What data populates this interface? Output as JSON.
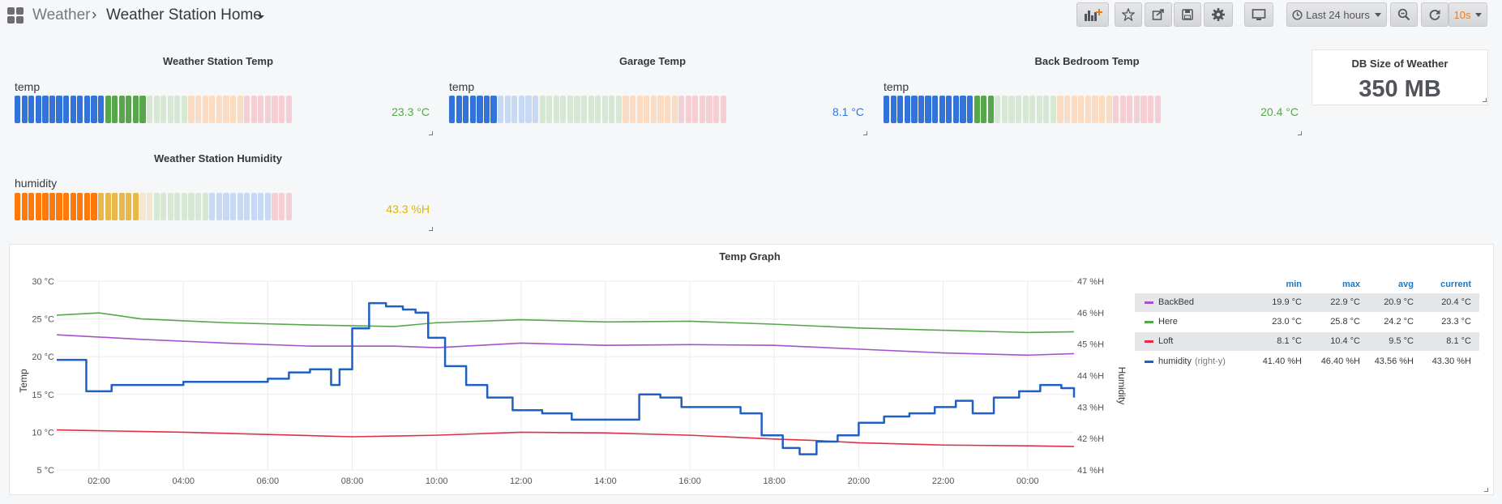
{
  "header": {
    "folder": "Weather",
    "separator": "›",
    "dashboard_title": "Weather Station Home",
    "time_range": "Last 24 hours",
    "refresh_interval": "10s"
  },
  "gauges": [
    {
      "title": "Weather Station Temp",
      "label": "temp",
      "value": "23.3 °C",
      "value_color": "#56a64b",
      "filled_cells": 19,
      "total_cells": 40
    },
    {
      "title": "Garage Temp",
      "label": "temp",
      "value": "8.1 °C",
      "value_color": "#3274d9",
      "filled_cells": 7,
      "total_cells": 40
    },
    {
      "title": "Back Bedroom Temp",
      "label": "temp",
      "value": "20.4 °C",
      "value_color": "#56a64b",
      "filled_cells": 16,
      "total_cells": 40
    },
    {
      "title": "Weather Station Humidity",
      "label": "humidity",
      "value": "43.3 %H",
      "value_color": "#e0b400",
      "filled_cells": 18,
      "total_cells": 40
    }
  ],
  "stat": {
    "title": "DB Size of Weather",
    "value": "350 MB"
  },
  "chart_data": {
    "type": "line",
    "title": "Temp Graph",
    "ylabel": "Temp",
    "ylabel_right": "Humidity",
    "ylim": [
      5,
      30
    ],
    "ylim_right": [
      41,
      47
    ],
    "y_ticks": [
      "5 °C",
      "10 °C",
      "15 °C",
      "20 °C",
      "25 °C",
      "30 °C"
    ],
    "y_ticks_right": [
      "41 %H",
      "42 %H",
      "43 %H",
      "44 %H",
      "45 %H",
      "46 %H",
      "47 %H"
    ],
    "x_ticks": [
      "02:00",
      "04:00",
      "06:00",
      "08:00",
      "10:00",
      "12:00",
      "14:00",
      "16:00",
      "18:00",
      "20:00",
      "22:00",
      "00:00"
    ],
    "x_tick_hours": [
      2,
      4,
      6,
      8,
      10,
      12,
      14,
      16,
      18,
      20,
      22,
      24
    ],
    "xlim_hours": [
      1,
      25.1
    ],
    "grid": true,
    "legend_placement": "right",
    "legend_columns": [
      "min",
      "max",
      "avg",
      "current"
    ],
    "series": [
      {
        "name": "BackBed",
        "color": "#a352cc",
        "axis": "left",
        "x": [
          1,
          3,
          5,
          7,
          9,
          10,
          12,
          14,
          16,
          18,
          20,
          22,
          24,
          25.1
        ],
        "values": [
          22.9,
          22.3,
          21.8,
          21.4,
          21.4,
          21.2,
          21.8,
          21.5,
          21.6,
          21.5,
          21.0,
          20.5,
          20.2,
          20.4
        ],
        "min": "19.9 °C",
        "max": "22.9 °C",
        "avg": "20.9 °C",
        "current": "20.4 °C"
      },
      {
        "name": "Here",
        "color": "#56a64b",
        "axis": "left",
        "x": [
          1,
          2,
          3,
          5,
          7,
          9,
          10,
          12,
          14,
          16,
          18,
          20,
          22,
          24,
          25.1
        ],
        "values": [
          25.5,
          25.8,
          25.0,
          24.5,
          24.2,
          24.0,
          24.5,
          24.9,
          24.6,
          24.7,
          24.3,
          23.8,
          23.5,
          23.2,
          23.3
        ],
        "min": "23.0 °C",
        "max": "25.8 °C",
        "avg": "24.2 °C",
        "current": "23.3 °C"
      },
      {
        "name": "Loft",
        "color": "#e02f44",
        "axis": "left",
        "x": [
          1,
          2,
          4,
          6,
          8,
          10,
          12,
          14,
          16,
          18,
          19,
          20,
          22,
          24,
          25.1
        ],
        "values": [
          10.3,
          10.2,
          10.0,
          9.7,
          9.4,
          9.6,
          10.0,
          9.9,
          9.6,
          9.1,
          8.9,
          8.6,
          8.3,
          8.2,
          8.1
        ],
        "min": "8.1 °C",
        "max": "10.4 °C",
        "avg": "9.5 °C",
        "current": "8.1 °C"
      },
      {
        "name": "humidity",
        "name_suffix": "(right-y)",
        "color": "#1f60c4",
        "axis": "right",
        "x": [
          1,
          1.6,
          1.7,
          2.3,
          3,
          4,
          5,
          6,
          6.5,
          7,
          7.5,
          7.7,
          8,
          8.4,
          8.8,
          9.2,
          9.5,
          9.8,
          10.2,
          10.7,
          11.2,
          11.8,
          12.5,
          13.2,
          14,
          14.8,
          15.3,
          15.8,
          16.5,
          17.2,
          17.7,
          18.2,
          18.6,
          19,
          19.5,
          20,
          20.6,
          21.2,
          21.8,
          22.3,
          22.7,
          23.2,
          23.8,
          24.3,
          24.8,
          25.1
        ],
        "values": [
          44.5,
          44.5,
          43.5,
          43.7,
          43.7,
          43.8,
          43.8,
          43.9,
          44.1,
          44.2,
          43.7,
          44.2,
          45.5,
          46.3,
          46.2,
          46.1,
          46.0,
          45.2,
          44.3,
          43.7,
          43.3,
          42.9,
          42.8,
          42.6,
          42.6,
          43.4,
          43.3,
          43.0,
          43.0,
          42.8,
          42.1,
          41.7,
          41.5,
          41.9,
          42.1,
          42.5,
          42.7,
          42.8,
          43.0,
          43.2,
          42.8,
          43.3,
          43.5,
          43.7,
          43.6,
          43.3
        ],
        "min": "41.40 %H",
        "max": "46.40 %H",
        "avg": "43.56 %H",
        "current": "43.30 %H"
      }
    ]
  }
}
